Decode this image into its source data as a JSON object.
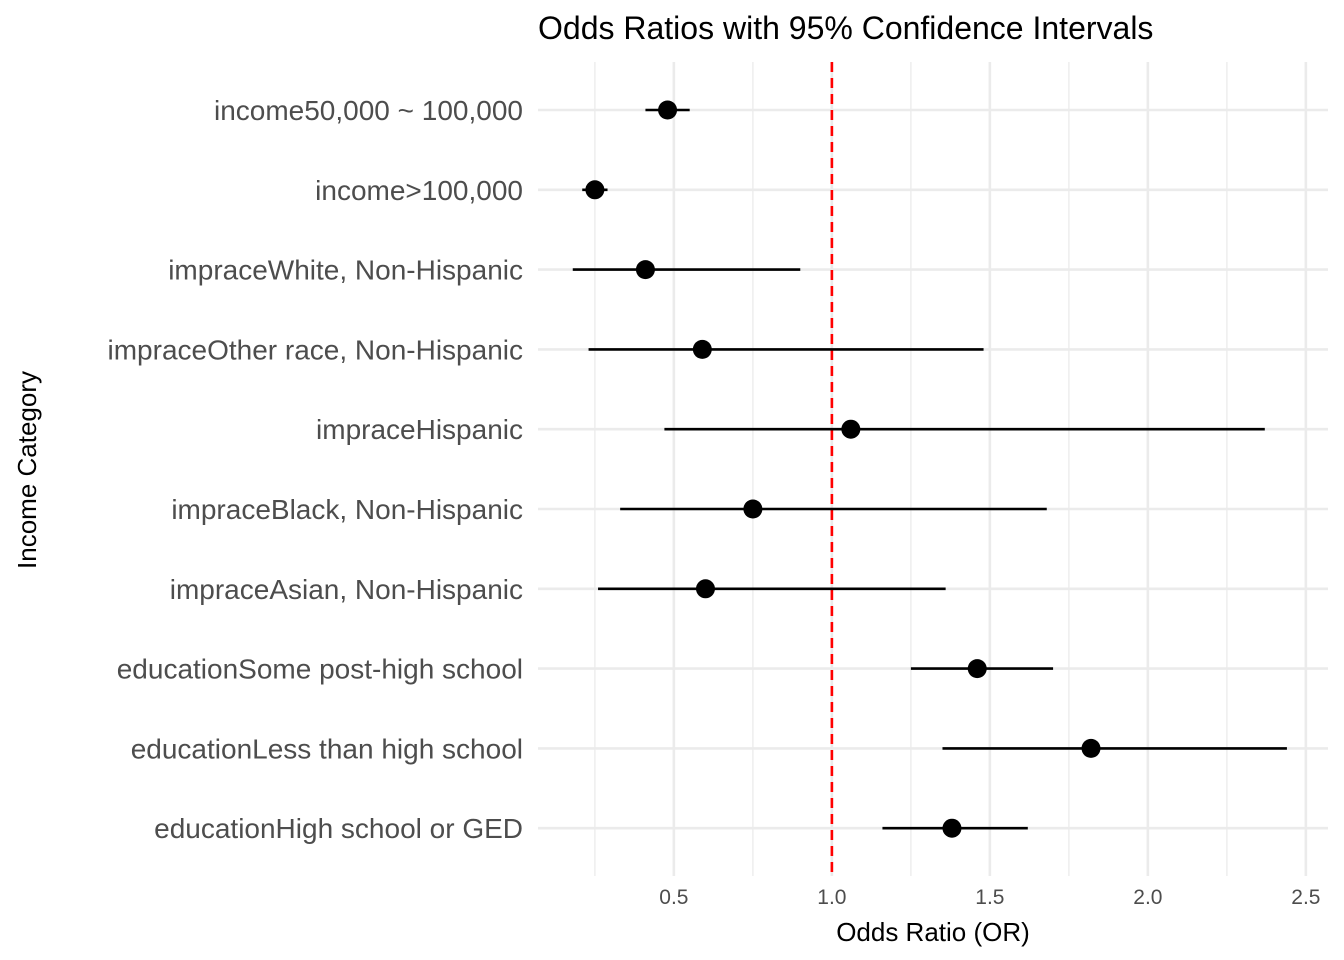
{
  "chart_data": {
    "type": "scatter",
    "subtype": "forest-plot",
    "title": "Odds Ratios with 95% Confidence Intervals",
    "xlabel": "Odds Ratio (OR)",
    "ylabel": "Income Category",
    "xlim": [
      0.07,
      2.57
    ],
    "x_ticks": [
      0.5,
      1.0,
      1.5,
      2.0,
      2.5
    ],
    "x_tick_labels": [
      "0.5",
      "1.0",
      "1.5",
      "2.0",
      "2.5"
    ],
    "reference_line": {
      "x": 1.0,
      "style": "dashed",
      "color": "#ff0000"
    },
    "point_color": "#000000",
    "grid": true,
    "legend": "none",
    "categories": [
      "income50,000 ~ 100,000",
      "income>100,000",
      "impraceWhite, Non-Hispanic",
      "impraceOther race, Non-Hispanic",
      "impraceHispanic",
      "impraceBlack, Non-Hispanic",
      "impraceAsian, Non-Hispanic",
      "educationSome post-high school",
      "educationLess than high school",
      "educationHigh school or GED"
    ],
    "points": [
      {
        "category": "income50,000 ~ 100,000",
        "or": 0.48,
        "lower": 0.41,
        "upper": 0.55
      },
      {
        "category": "income>100,000",
        "or": 0.25,
        "lower": 0.21,
        "upper": 0.29
      },
      {
        "category": "impraceWhite, Non-Hispanic",
        "or": 0.41,
        "lower": 0.18,
        "upper": 0.9
      },
      {
        "category": "impraceOther race, Non-Hispanic",
        "or": 0.59,
        "lower": 0.23,
        "upper": 1.48
      },
      {
        "category": "impraceHispanic",
        "or": 1.06,
        "lower": 0.47,
        "upper": 2.37
      },
      {
        "category": "impraceBlack, Non-Hispanic",
        "or": 0.75,
        "lower": 0.33,
        "upper": 1.68
      },
      {
        "category": "impraceAsian, Non-Hispanic",
        "or": 0.6,
        "lower": 0.26,
        "upper": 1.36
      },
      {
        "category": "educationSome post-high school",
        "or": 1.46,
        "lower": 1.25,
        "upper": 1.7
      },
      {
        "category": "educationLess than high school",
        "or": 1.82,
        "lower": 1.35,
        "upper": 2.44
      },
      {
        "category": "educationHigh school or GED",
        "or": 1.38,
        "lower": 1.16,
        "upper": 1.62
      }
    ]
  }
}
